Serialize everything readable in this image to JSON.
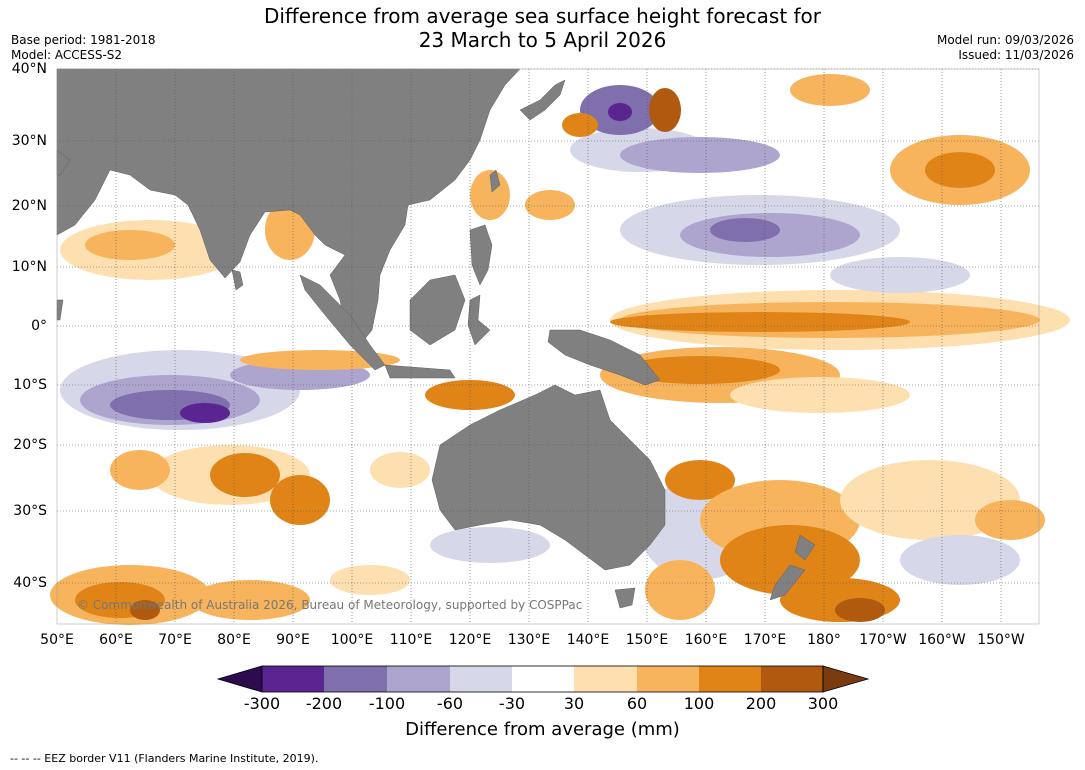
{
  "title": {
    "line1": "Difference from average sea surface height forecast for",
    "line2": "23 March to 5 April 2026"
  },
  "meta": {
    "base_period": "Base period: 1981-2018",
    "model": "Model: ACCESS-S2",
    "model_run": "Model run: 09/03/2026",
    "issued": "Issued: 11/03/2026"
  },
  "map": {
    "lat_labels": [
      "40°N",
      "30°N",
      "20°N",
      "10°N",
      "0°",
      "10°S",
      "20°S",
      "30°S",
      "40°S"
    ],
    "lon_labels": [
      "50°E",
      "60°E",
      "70°E",
      "80°E",
      "90°E",
      "100°E",
      "110°E",
      "120°E",
      "130°E",
      "140°E",
      "150°E",
      "160°E",
      "170°E",
      "180°",
      "170°W",
      "160°W",
      "150°W"
    ],
    "copyright": "© Commonwealth of Australia 2026, Bureau of Meteorology, supported by COSPPac",
    "land_color": "#808080",
    "ocean_color": "#ffffff"
  },
  "colorbar": {
    "title": "Difference from average (mm)",
    "ticks": [
      "-300",
      "-200",
      "-100",
      "-60",
      "-30",
      "30",
      "60",
      "100",
      "200",
      "300"
    ],
    "colors": [
      "#5a2590",
      "#7f6fac",
      "#aea5cf",
      "#d7d7ea",
      "#ffffff",
      "#fddfb0",
      "#f8b45c",
      "#e08417",
      "#b05a10"
    ],
    "under_color": "#2d0b4f",
    "over_color": "#7a3c0e"
  },
  "footer": {
    "text": "--  --  -- EEZ border V11 (Flanders Marine Institute, 2019)."
  }
}
